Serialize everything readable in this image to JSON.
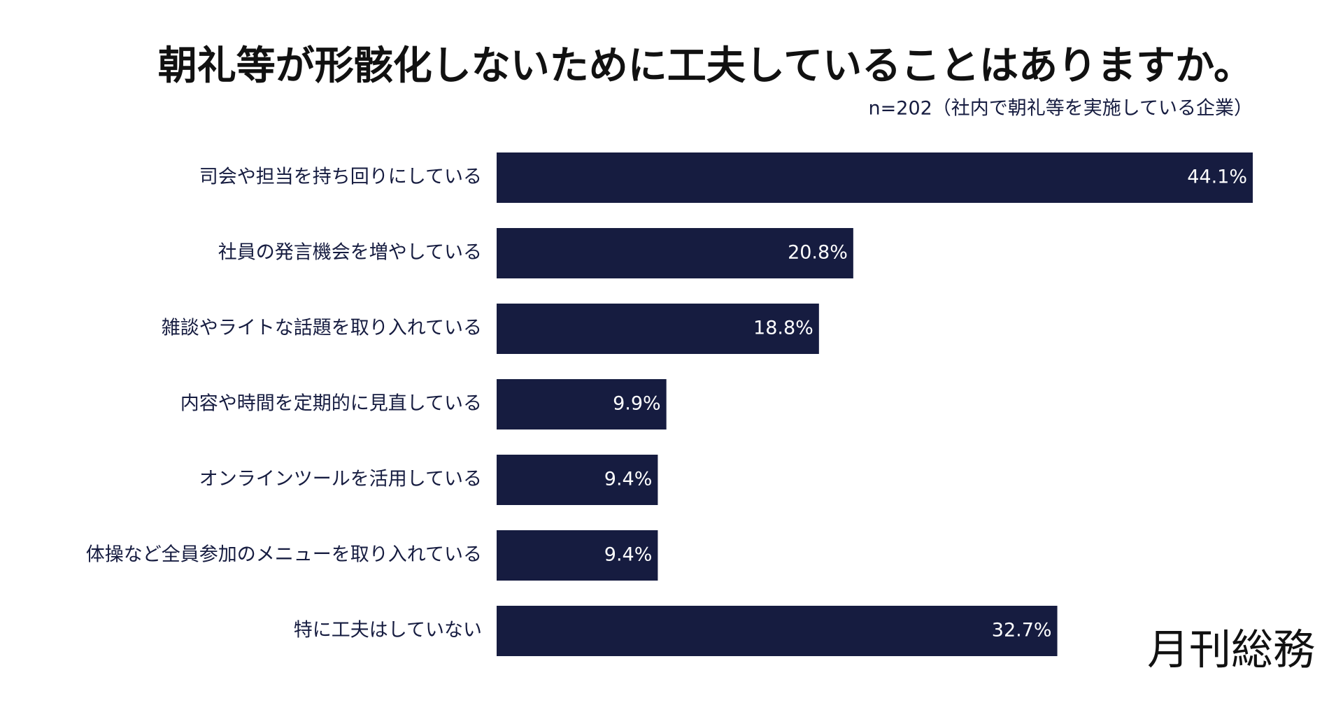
{
  "chart_data": {
    "type": "bar",
    "orientation": "horizontal",
    "title": "朝礼等が形骸化しないために工夫していることはありますか。",
    "subtitle": "n=202（社内で朝礼等を実施している企業）",
    "categories": [
      "司会や担当を持ち回りにしている",
      "社員の発言機会を増やしている",
      "雑談やライトな話題を取り入れている",
      "内容や時間を定期的に見直している",
      "オンラインツールを活用している",
      "体操など全員参加のメニューを取り入れている",
      "特に工夫はしていない"
    ],
    "values": [
      44.1,
      20.8,
      18.8,
      9.9,
      9.4,
      9.4,
      32.7
    ],
    "value_labels": [
      "44.1%",
      "20.8%",
      "18.8%",
      "9.9%",
      "9.4%",
      "9.4%",
      "32.7%"
    ],
    "color": "#161c40"
  },
  "logo": "月刊総務"
}
